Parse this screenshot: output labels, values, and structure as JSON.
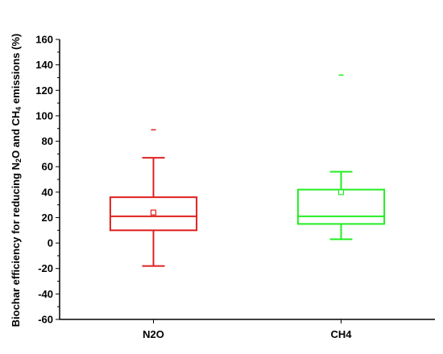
{
  "chart_data": {
    "type": "box",
    "ylabel": {
      "part1": "Biochar efficiency for reducing N",
      "sub1": "2",
      "part2": "O and CH",
      "sub2": "4",
      "part3": " emissions (%)"
    },
    "ylim": [
      -60,
      160
    ],
    "yticks": [
      "-60",
      "-40",
      "-20",
      "0",
      "20",
      "40",
      "60",
      "80",
      "100",
      "120",
      "140",
      "160"
    ],
    "categories": [
      "N2O",
      "CH4"
    ],
    "boxes": [
      {
        "name": "N2O",
        "color": "#e02020",
        "whisker_low": -18,
        "q1": 10,
        "median": 21,
        "q3": 36,
        "whisker_high": 67,
        "mean": 24,
        "outliers": [
          89
        ]
      },
      {
        "name": "CH4",
        "color": "#22ee22",
        "whisker_low": 3,
        "q1": 15,
        "median": 21,
        "q3": 42,
        "whisker_high": 56,
        "mean": 40,
        "outliers": [
          132
        ]
      }
    ],
    "grid": false
  }
}
